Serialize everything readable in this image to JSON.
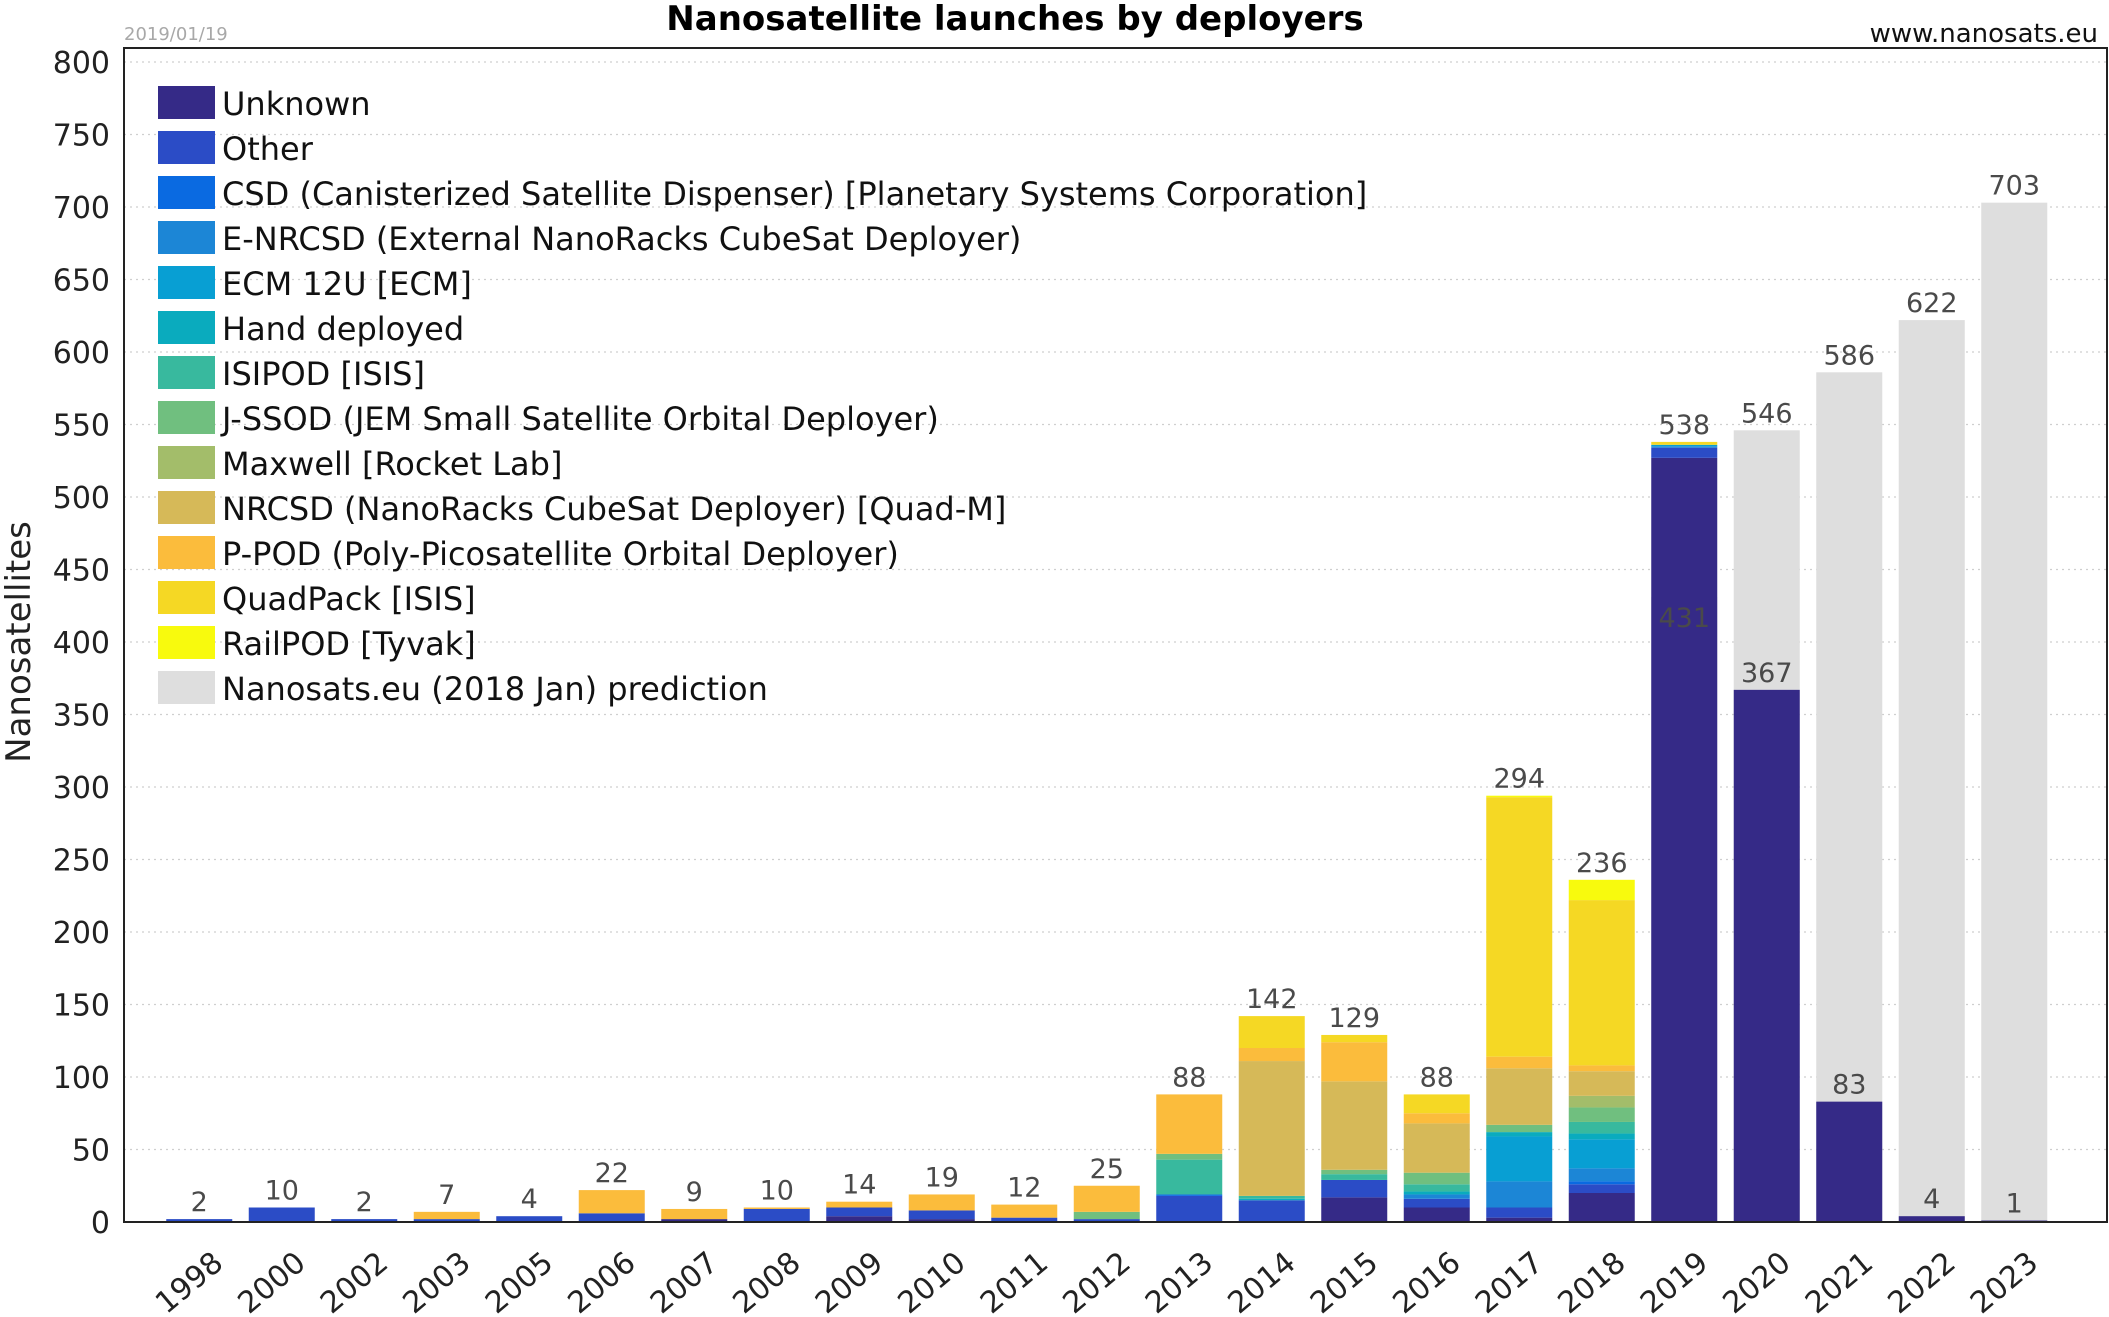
{
  "chart_data": {
    "type": "bar",
    "stacked": true,
    "title": "Nanosatellite launches by deployers",
    "date_stamp": "2019/01/19",
    "source": "www.nanosats.eu",
    "xlabel": "",
    "ylabel": "Nanosatellites",
    "ylim": [
      0,
      800
    ],
    "yticks": [
      0,
      50,
      100,
      150,
      200,
      250,
      300,
      350,
      400,
      450,
      500,
      550,
      600,
      650,
      700,
      750,
      800
    ],
    "grid": true,
    "legend_position": "top-left",
    "categories": [
      "1998",
      "2000",
      "2002",
      "2003",
      "2005",
      "2006",
      "2007",
      "2008",
      "2009",
      "2010",
      "2011",
      "2012",
      "2013",
      "2014",
      "2015",
      "2016",
      "2017",
      "2018",
      "2019",
      "2020",
      "2021",
      "2022",
      "2023"
    ],
    "totals": [
      2,
      10,
      2,
      7,
      4,
      22,
      9,
      10,
      14,
      19,
      12,
      25,
      88,
      142,
      129,
      88,
      294,
      236,
      538,
      367,
      83,
      4,
      1
    ],
    "prediction": {
      "name": "Nanosats.eu (2018 Jan) prediction",
      "color": "#dedede",
      "values": [
        null,
        null,
        null,
        null,
        null,
        null,
        null,
        null,
        null,
        null,
        null,
        null,
        null,
        null,
        null,
        null,
        null,
        null,
        431,
        546,
        586,
        622,
        703
      ]
    },
    "series": [
      {
        "name": "Unknown",
        "color": "#352a87",
        "values": [
          0,
          0,
          0,
          0,
          0,
          0,
          2,
          0,
          4,
          2,
          0,
          0,
          0,
          0,
          17,
          10,
          3,
          20,
          527,
          367,
          83,
          4,
          1
        ]
      },
      {
        "name": "Other",
        "color": "#2b4cc6",
        "values": [
          2,
          10,
          2,
          2,
          4,
          6,
          0,
          9,
          6,
          6,
          3,
          2,
          18,
          15,
          12,
          6,
          7,
          6,
          7,
          0,
          0,
          0,
          0
        ]
      },
      {
        "name": "CSD (Canisterized Satellite Dispenser) [Planetary Systems Corporation]",
        "color": "#0a6ae1",
        "values": [
          0,
          0,
          0,
          0,
          0,
          0,
          0,
          0,
          0,
          0,
          0,
          0,
          1,
          0,
          0,
          0,
          0,
          2,
          0,
          0,
          0,
          0,
          0
        ]
      },
      {
        "name": "E-NRCSD (External NanoRacks CubeSat Deployer)",
        "color": "#1c86d6",
        "values": [
          0,
          0,
          0,
          0,
          0,
          0,
          0,
          0,
          0,
          0,
          0,
          0,
          0,
          0,
          0,
          3,
          18,
          9,
          1,
          0,
          0,
          0,
          0
        ]
      },
      {
        "name": "ECM 12U [ECM]",
        "color": "#089fd3",
        "values": [
          0,
          0,
          0,
          0,
          0,
          0,
          0,
          0,
          0,
          0,
          0,
          0,
          0,
          0,
          0,
          0,
          31,
          20,
          1,
          0,
          0,
          0,
          0
        ]
      },
      {
        "name": "Hand deployed",
        "color": "#0aabbe",
        "values": [
          0,
          0,
          0,
          0,
          0,
          0,
          0,
          0,
          0,
          0,
          0,
          0,
          0,
          1,
          0,
          2,
          3,
          4,
          0,
          0,
          0,
          0,
          0
        ]
      },
      {
        "name": "ISIPOD [ISIS]",
        "color": "#38b99e",
        "values": [
          0,
          0,
          0,
          0,
          0,
          0,
          0,
          0,
          0,
          0,
          0,
          0,
          24,
          2,
          4,
          5,
          0,
          8,
          0,
          0,
          0,
          0,
          0
        ]
      },
      {
        "name": "J-SSOD (JEM Small Satellite Orbital Deployer)",
        "color": "#70bf7f",
        "values": [
          0,
          0,
          0,
          0,
          0,
          0,
          0,
          0,
          0,
          0,
          0,
          5,
          4,
          0,
          3,
          8,
          5,
          10,
          0,
          0,
          0,
          0,
          0
        ]
      },
      {
        "name": "Maxwell [Rocket Lab]",
        "color": "#a3bd6a",
        "values": [
          0,
          0,
          0,
          0,
          0,
          0,
          0,
          0,
          0,
          0,
          0,
          0,
          0,
          0,
          0,
          0,
          0,
          8,
          0,
          0,
          0,
          0,
          0
        ]
      },
      {
        "name": "NRCSD (NanoRacks CubeSat Deployer)  [Quad-M]",
        "color": "#d6b958",
        "values": [
          0,
          0,
          0,
          0,
          0,
          0,
          0,
          0,
          0,
          0,
          0,
          0,
          0,
          93,
          61,
          34,
          39,
          17,
          0,
          0,
          0,
          0,
          0
        ]
      },
      {
        "name": "P-POD (Poly-Picosatellite Orbital Deployer)",
        "color": "#fbbc3c",
        "values": [
          0,
          0,
          0,
          5,
          0,
          16,
          7,
          1,
          4,
          11,
          9,
          18,
          41,
          9,
          27,
          7,
          8,
          4,
          0,
          0,
          0,
          0,
          0
        ]
      },
      {
        "name": "QuadPack [ISIS]",
        "color": "#f5d824",
        "values": [
          0,
          0,
          0,
          0,
          0,
          0,
          0,
          0,
          0,
          0,
          0,
          0,
          0,
          22,
          5,
          13,
          179,
          114,
          2,
          0,
          0,
          0,
          0
        ]
      },
      {
        "name": "RailPOD [Tyvak]",
        "color": "#f8fa0d",
        "values": [
          0,
          0,
          0,
          0,
          0,
          0,
          0,
          0,
          0,
          0,
          0,
          0,
          0,
          0,
          0,
          0,
          1,
          14,
          0,
          0,
          0,
          0,
          0
        ]
      }
    ]
  }
}
